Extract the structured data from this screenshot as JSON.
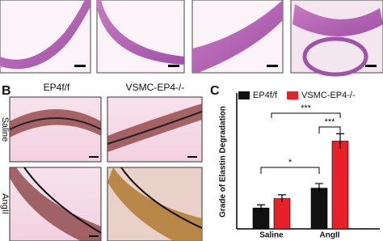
{
  "panels": {
    "b_label": "B",
    "c_label": "C",
    "col_headers": [
      "EP4f/f",
      "VSMC-EP4-/-"
    ],
    "row_labels": [
      "Saline",
      "AngII"
    ]
  },
  "chart_data": {
    "type": "bar",
    "ylabel": "Grade of Elastin Degradation",
    "categories": [
      "Saline",
      "AngII"
    ],
    "series": [
      {
        "name": "EP4f/f",
        "color": "#111111",
        "values": [
          1.0,
          1.95
        ],
        "errors": [
          0.15,
          0.22
        ]
      },
      {
        "name": "VSMC-EP4-/-",
        "color": "#e8202a",
        "values": [
          1.45,
          4.2
        ],
        "errors": [
          0.18,
          0.35
        ]
      }
    ],
    "ylim": [
      0,
      6.5
    ],
    "annotations": [
      {
        "text": "*"
      },
      {
        "text": "***"
      },
      {
        "text": "***"
      }
    ]
  }
}
